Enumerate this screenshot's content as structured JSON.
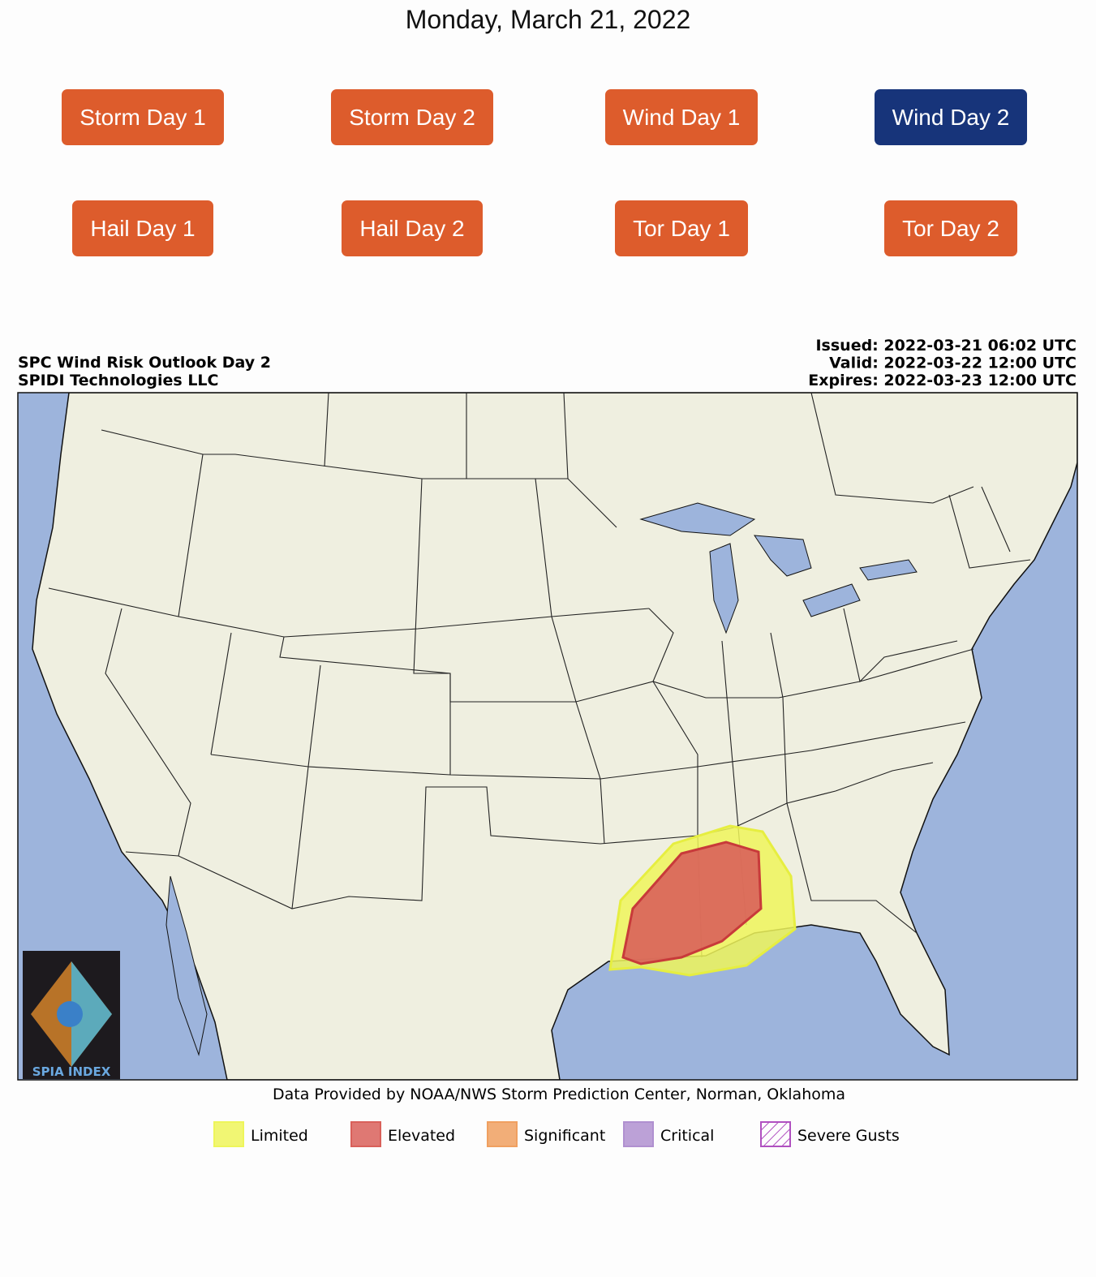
{
  "header": {
    "date": "Monday, March 21, 2022"
  },
  "button_style": {
    "color": "#dd5c2c",
    "active_color": "#17347a",
    "text_color": "#ffffff"
  },
  "buttons": [
    {
      "label": "Storm Day 1",
      "active": false
    },
    {
      "label": "Storm Day 2",
      "active": false
    },
    {
      "label": "Wind Day 1",
      "active": false
    },
    {
      "label": "Wind Day 2",
      "active": true
    },
    {
      "label": "Hail Day 1",
      "active": false
    },
    {
      "label": "Hail Day 2",
      "active": false
    },
    {
      "label": "Tor Day 1",
      "active": false
    },
    {
      "label": "Tor Day 2",
      "active": false
    }
  ],
  "map": {
    "title": "SPC Wind Risk Outlook Day 2",
    "credit": "SPIDI Technologies LLC",
    "times": [
      {
        "label": "Issued:",
        "value": "2022-03-21 06:02 UTC"
      },
      {
        "label": "Valid:",
        "value": "2022-03-22 12:00 UTC"
      },
      {
        "label": "Expires:",
        "value": "2022-03-23 12:00 UTC"
      }
    ],
    "logo": "SPIA INDEX",
    "source": "Data Provided by NOAA/NWS Storm Prediction Center, Norman, Oklahoma",
    "legend": [
      {
        "name": "Limited",
        "color": "#eef55a"
      },
      {
        "name": "Elevated",
        "color": "#d9605a"
      },
      {
        "name": "Significant",
        "color": "#f0a060"
      },
      {
        "name": "Critical",
        "color": "#b090d0"
      },
      {
        "name": "Severe Gusts",
        "color": "#b050c0",
        "pattern": "hatch"
      }
    ]
  }
}
